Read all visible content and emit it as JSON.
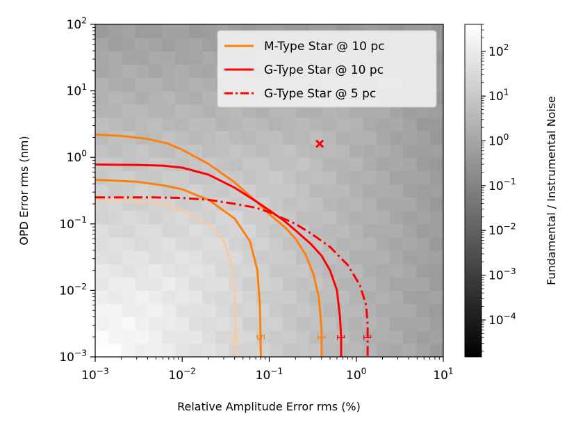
{
  "chart_data": {
    "type": "heatmap",
    "xlabel": "Relative Amplitude Error rms (%)",
    "ylabel": "OPD Error rms (nm)",
    "xscale": "log",
    "yscale": "log",
    "xlim": [
      0.001,
      10
    ],
    "ylim": [
      0.001,
      100
    ],
    "x_ticks": [
      {
        "base": "10",
        "exp": "−3"
      },
      {
        "base": "10",
        "exp": "−2"
      },
      {
        "base": "10",
        "exp": "−1"
      },
      {
        "base": "10",
        "exp": "0"
      },
      {
        "base": "10",
        "exp": "1"
      }
    ],
    "y_ticks": [
      {
        "base": "10",
        "exp": "−3"
      },
      {
        "base": "10",
        "exp": "−2"
      },
      {
        "base": "10",
        "exp": "−1"
      },
      {
        "base": "10",
        "exp": "0"
      },
      {
        "base": "10",
        "exp": "1"
      },
      {
        "base": "10",
        "exp": "2"
      }
    ],
    "colorbar": {
      "label": "Fundamental / Instrumental Noise",
      "scale": "log",
      "range": [
        1.5e-05,
        400
      ],
      "ticks": [
        {
          "base": "10",
          "exp": "2"
        },
        {
          "base": "10",
          "exp": "1"
        },
        {
          "base": "10",
          "exp": "0"
        },
        {
          "base": "10",
          "exp": "−1"
        },
        {
          "base": "10",
          "exp": "−2"
        },
        {
          "base": "10",
          "exp": "−3"
        },
        {
          "base": "10",
          "exp": "−4"
        }
      ],
      "colors": [
        "#000000",
        "#ffffff"
      ]
    },
    "legend": {
      "position": "top-right",
      "entries": [
        {
          "label": "M-Type Star @ 10 pc",
          "color": "#ff7f0e",
          "style": "solid"
        },
        {
          "label": "G-Type Star @ 10 pc",
          "color": "#ff0000",
          "style": "solid"
        },
        {
          "label": "G-Type Star @ 5 pc",
          "color": "#ff0000",
          "style": "dashdot"
        }
      ]
    },
    "series": [
      {
        "name": "M-Type 10",
        "level": "10",
        "color": "#f5cba7",
        "style": "solid",
        "points": [
          [
            0.001,
            0.23
          ],
          [
            0.003,
            0.22
          ],
          [
            0.006,
            0.2
          ],
          [
            0.01,
            0.16
          ],
          [
            0.02,
            0.1
          ],
          [
            0.03,
            0.055
          ],
          [
            0.037,
            0.025
          ],
          [
            0.04,
            0.01
          ],
          [
            0.041,
            0.003
          ],
          [
            0.041,
            0.001
          ]
        ]
      },
      {
        "name": "M-Type 5",
        "level": "5",
        "color": "#ff7f0e",
        "style": "solid",
        "points": [
          [
            0.001,
            0.46
          ],
          [
            0.003,
            0.43
          ],
          [
            0.006,
            0.38
          ],
          [
            0.01,
            0.33
          ],
          [
            0.02,
            0.23
          ],
          [
            0.04,
            0.12
          ],
          [
            0.06,
            0.055
          ],
          [
            0.073,
            0.02
          ],
          [
            0.078,
            0.006
          ],
          [
            0.079,
            0.003
          ],
          [
            0.08,
            0.001
          ]
        ]
      },
      {
        "name": "M-Type 1",
        "level": "1",
        "color": "#ff7f0e",
        "style": "solid",
        "points": [
          [
            0.001,
            2.2
          ],
          [
            0.002,
            2.1
          ],
          [
            0.004,
            1.9
          ],
          [
            0.007,
            1.6
          ],
          [
            0.01,
            1.3
          ],
          [
            0.02,
            0.8
          ],
          [
            0.04,
            0.42
          ],
          [
            0.07,
            0.22
          ],
          [
            0.1,
            0.14
          ],
          [
            0.15,
            0.09
          ],
          [
            0.2,
            0.06
          ],
          [
            0.26,
            0.035
          ],
          [
            0.32,
            0.018
          ],
          [
            0.37,
            0.008
          ],
          [
            0.39,
            0.004
          ],
          [
            0.4,
            0.0025
          ],
          [
            0.4,
            0.001
          ]
        ]
      },
      {
        "name": "G-Type 10pc 1",
        "level": "1",
        "color": "#ff0000",
        "style": "solid",
        "points": [
          [
            0.001,
            0.78
          ],
          [
            0.003,
            0.77
          ],
          [
            0.006,
            0.75
          ],
          [
            0.01,
            0.7
          ],
          [
            0.02,
            0.55
          ],
          [
            0.04,
            0.35
          ],
          [
            0.07,
            0.22
          ],
          [
            0.1,
            0.16
          ],
          [
            0.15,
            0.11
          ],
          [
            0.2,
            0.08
          ],
          [
            0.3,
            0.05
          ],
          [
            0.4,
            0.033
          ],
          [
            0.5,
            0.02
          ],
          [
            0.6,
            0.01
          ],
          [
            0.65,
            0.004
          ],
          [
            0.67,
            0.002
          ],
          [
            0.67,
            0.001
          ]
        ]
      },
      {
        "name": "G-Type 5pc 1",
        "level": "1",
        "color": "#ff0000",
        "style": "dashdot",
        "points": [
          [
            0.001,
            0.25
          ],
          [
            0.005,
            0.25
          ],
          [
            0.01,
            0.245
          ],
          [
            0.02,
            0.23
          ],
          [
            0.04,
            0.2
          ],
          [
            0.07,
            0.175
          ],
          [
            0.1,
            0.15
          ],
          [
            0.2,
            0.1
          ],
          [
            0.3,
            0.072
          ],
          [
            0.5,
            0.045
          ],
          [
            0.8,
            0.024
          ],
          [
            1.1,
            0.012
          ],
          [
            1.3,
            0.006
          ],
          [
            1.35,
            0.003
          ],
          [
            1.35,
            0.001
          ]
        ]
      }
    ],
    "marker": {
      "x": 0.38,
      "y": 1.6,
      "symbol": "x",
      "color": "#ff0000"
    }
  }
}
